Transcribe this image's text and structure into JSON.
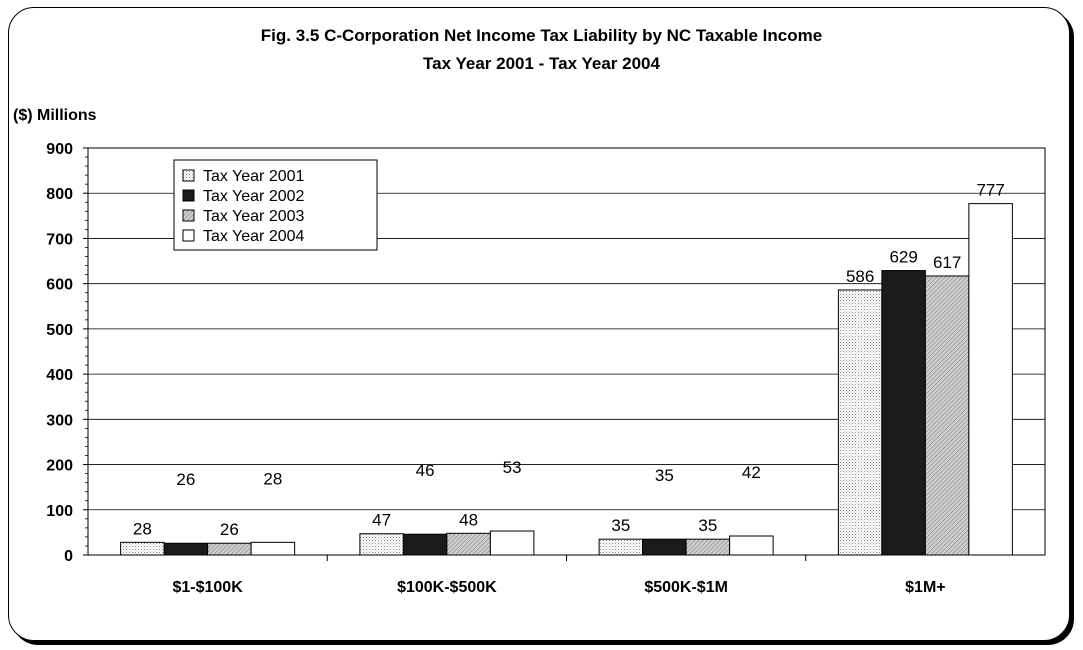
{
  "chart_data": {
    "type": "bar",
    "title": "Fig. 3.5  C-Corporation Net Income Tax Liability by NC Taxable Income",
    "subtitle": "Tax Year 2001 - Tax Year 2004",
    "ylabel": "($) Millions",
    "xlabel": "",
    "ylim": [
      0,
      900
    ],
    "yticks": [
      0,
      100,
      200,
      300,
      400,
      500,
      600,
      700,
      800,
      900
    ],
    "grid": true,
    "legend_position": "top-left",
    "categories": [
      "$1-$100K",
      "$100K-$500K",
      "$500K-$1M",
      "$1M+"
    ],
    "series": [
      {
        "name": "Tax Year 2001",
        "values": [
          28,
          47,
          35,
          586
        ],
        "color": "#ffffff",
        "pattern": "dots"
      },
      {
        "name": "Tax Year 2002",
        "values": [
          26,
          46,
          35,
          629
        ],
        "color": "#1a1a1a",
        "pattern": "solid"
      },
      {
        "name": "Tax Year 2003",
        "values": [
          26,
          48,
          35,
          617
        ],
        "color": "#c8c8c8",
        "pattern": "hatch"
      },
      {
        "name": "Tax Year 2004",
        "values": [
          28,
          53,
          42,
          777
        ],
        "color": "#ffffff",
        "pattern": "solid"
      }
    ]
  }
}
